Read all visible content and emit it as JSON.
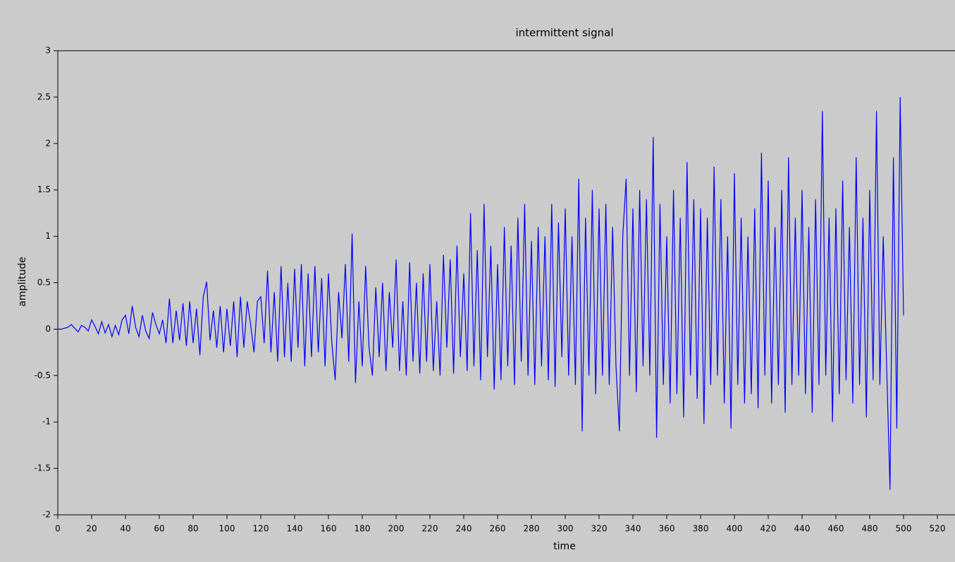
{
  "chart_data": {
    "type": "line",
    "title": "intermittent signal",
    "xlabel": "time",
    "ylabel": "amplitude",
    "xlim": [
      0,
      530
    ],
    "xticks": [
      0,
      20,
      40,
      60,
      80,
      100,
      120,
      140,
      160,
      180,
      200,
      220,
      240,
      260,
      280,
      300,
      320,
      340,
      360,
      380,
      400,
      420,
      440,
      460,
      480,
      500,
      520
    ],
    "ylim": [
      -2,
      3
    ],
    "yticks": [
      -2,
      -1.5,
      -1,
      -0.5,
      0,
      0.5,
      1,
      1.5,
      2,
      2.5,
      3
    ],
    "x": [
      0,
      2,
      4,
      6,
      8,
      10,
      12,
      14,
      16,
      18,
      20,
      22,
      24,
      26,
      28,
      30,
      32,
      34,
      36,
      38,
      40,
      42,
      44,
      46,
      48,
      50,
      52,
      54,
      56,
      58,
      60,
      62,
      64,
      66,
      68,
      70,
      72,
      74,
      76,
      78,
      80,
      82,
      84,
      86,
      88,
      90,
      92,
      94,
      96,
      98,
      100,
      102,
      104,
      106,
      108,
      110,
      112,
      114,
      116,
      118,
      120,
      122,
      124,
      126,
      128,
      130,
      132,
      134,
      136,
      138,
      140,
      142,
      144,
      146,
      148,
      150,
      152,
      154,
      156,
      158,
      160,
      162,
      164,
      166,
      168,
      170,
      172,
      174,
      176,
      178,
      180,
      182,
      184,
      186,
      188,
      190,
      192,
      194,
      196,
      198,
      200,
      202,
      204,
      206,
      208,
      210,
      212,
      214,
      216,
      218,
      220,
      222,
      224,
      226,
      228,
      230,
      232,
      234,
      236,
      238,
      240,
      242,
      244,
      246,
      248,
      250,
      252,
      254,
      256,
      258,
      260,
      262,
      264,
      266,
      268,
      270,
      272,
      274,
      276,
      278,
      280,
      282,
      284,
      286,
      288,
      290,
      292,
      294,
      296,
      298,
      300,
      302,
      304,
      306,
      308,
      310,
      312,
      314,
      316,
      318,
      320,
      322,
      324,
      326,
      328,
      330,
      332,
      334,
      336,
      338,
      340,
      342,
      344,
      346,
      348,
      350,
      352,
      354,
      356,
      358,
      360,
      362,
      364,
      366,
      368,
      370,
      372,
      374,
      376,
      378,
      380,
      382,
      384,
      386,
      388,
      390,
      392,
      394,
      396,
      398,
      400,
      402,
      404,
      406,
      408,
      410,
      412,
      414,
      416,
      418,
      420,
      422,
      424,
      426,
      428,
      430,
      432,
      434,
      436,
      438,
      440,
      442,
      444,
      446,
      448,
      450,
      452,
      454,
      456,
      458,
      460,
      462,
      464,
      466,
      468,
      470,
      472,
      474,
      476,
      478,
      480,
      482,
      484,
      486,
      488,
      490,
      492,
      494,
      496,
      498,
      500
    ],
    "series": [
      {
        "color": "#0000ff",
        "values": [
          0,
          0,
          0.01,
          0.02,
          0.05,
          0.01,
          -0.03,
          0.04,
          0.02,
          -0.02,
          0.1,
          0.03,
          -0.05,
          0.08,
          -0.04,
          0.05,
          -0.08,
          0.04,
          -0.06,
          0.1,
          0.15,
          -0.05,
          0.25,
          0.02,
          -0.08,
          0.15,
          -0.02,
          -0.1,
          0.18,
          0.05,
          -0.05,
          0.1,
          -0.15,
          0.33,
          -0.15,
          0.2,
          -0.12,
          0.28,
          -0.18,
          0.3,
          -0.15,
          0.22,
          -0.28,
          0.35,
          0.51,
          -0.12,
          0.2,
          -0.2,
          0.25,
          -0.25,
          0.22,
          -0.18,
          0.3,
          -0.3,
          0.35,
          -0.2,
          0.3,
          0.05,
          -0.25,
          0.3,
          0.35,
          -0.15,
          0.63,
          -0.25,
          0.4,
          -0.35,
          0.68,
          -0.3,
          0.5,
          -0.35,
          0.65,
          -0.2,
          0.7,
          -0.4,
          0.6,
          -0.3,
          0.68,
          -0.25,
          0.55,
          -0.4,
          0.6,
          -0.15,
          -0.55,
          0.4,
          -0.1,
          0.7,
          -0.35,
          1.03,
          -0.58,
          0.3,
          -0.4,
          0.68,
          -0.2,
          -0.5,
          0.45,
          -0.3,
          0.5,
          -0.45,
          0.4,
          -0.2,
          0.75,
          -0.45,
          0.3,
          -0.5,
          0.72,
          -0.35,
          0.5,
          -0.48,
          0.6,
          -0.35,
          0.7,
          -0.45,
          0.3,
          -0.5,
          0.8,
          -0.2,
          0.75,
          -0.48,
          0.9,
          -0.3,
          0.6,
          -0.45,
          1.25,
          -0.4,
          0.85,
          -0.55,
          1.35,
          -0.3,
          0.9,
          -0.65,
          0.7,
          -0.55,
          1.1,
          -0.4,
          0.9,
          -0.6,
          1.2,
          -0.35,
          1.35,
          -0.5,
          0.95,
          -0.6,
          1.1,
          -0.4,
          1.0,
          -0.55,
          1.35,
          -0.62,
          1.15,
          -0.3,
          1.3,
          -0.5,
          1.0,
          -0.6,
          1.62,
          -1.1,
          1.2,
          -0.5,
          1.5,
          -0.7,
          1.3,
          -0.5,
          1.35,
          -0.6,
          1.1,
          -0.4,
          -1.1,
          1.0,
          1.62,
          -0.5,
          1.3,
          -0.68,
          1.5,
          -0.4,
          1.4,
          -0.5,
          2.07,
          -1.17,
          1.35,
          -0.6,
          1.0,
          -0.8,
          1.5,
          -0.7,
          1.2,
          -0.95,
          1.8,
          -0.5,
          1.4,
          -0.75,
          1.3,
          -1.02,
          1.2,
          -0.6,
          1.75,
          -0.5,
          1.4,
          -0.8,
          1.0,
          -1.07,
          1.68,
          -0.6,
          1.2,
          -0.8,
          1.0,
          -0.7,
          1.3,
          -0.85,
          1.9,
          -0.5,
          1.6,
          -0.8,
          1.1,
          -0.6,
          1.5,
          -0.9,
          1.85,
          -0.6,
          1.2,
          -0.5,
          1.5,
          -0.7,
          1.1,
          -0.9,
          1.4,
          -0.6,
          2.35,
          -0.5,
          1.2,
          -1.0,
          1.3,
          -0.7,
          1.6,
          -0.55,
          1.1,
          -0.8,
          1.85,
          -0.6,
          1.2,
          -0.95,
          1.5,
          -0.55,
          2.35,
          -0.6,
          1.0,
          -0.4,
          -1.73,
          1.85,
          -1.07,
          2.5,
          0.15
        ]
      }
    ]
  }
}
